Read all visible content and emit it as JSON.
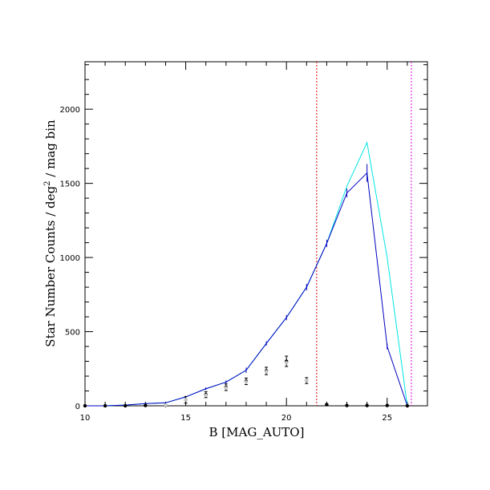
{
  "chart_data": {
    "type": "line",
    "xlabel": "B [MAG_AUTO]",
    "ylabel_parts": [
      "Star Number Counts / deg",
      "2",
      " / mag bin"
    ],
    "xlim": [
      10,
      27
    ],
    "ylim": [
      0,
      2320
    ],
    "xticks": [
      10,
      15,
      20,
      25
    ],
    "yticks": [
      0,
      500,
      1000,
      1500,
      2000
    ],
    "x_minor_step": 1,
    "y_minor_step": 100,
    "grid": false,
    "series": [
      {
        "style": "line",
        "color": "#00e5e5",
        "x": [
          10,
          11,
          12,
          13,
          14,
          15,
          16,
          17,
          18,
          19,
          20,
          21,
          22,
          23,
          24,
          25,
          26
        ],
        "y": [
          0,
          0,
          5,
          15,
          20,
          60,
          115,
          160,
          240,
          420,
          595,
          800,
          1095,
          1480,
          1775,
          1000,
          0
        ]
      },
      {
        "style": "line",
        "color": "#0000c0",
        "x": [
          10,
          11,
          12,
          13,
          14,
          15,
          16,
          17,
          18,
          19,
          20,
          21,
          22,
          23,
          24,
          25,
          26
        ],
        "y": [
          0,
          0,
          5,
          15,
          20,
          60,
          115,
          160,
          240,
          420,
          595,
          800,
          1095,
          1435,
          1570,
          400,
          0
        ],
        "err": [
          0,
          0,
          2,
          3,
          4,
          7,
          9,
          11,
          18,
          15,
          18,
          22,
          25,
          30,
          60,
          20,
          0
        ]
      },
      {
        "style": "points",
        "color": "#000000",
        "x": [
          10,
          11,
          12,
          13,
          14,
          15,
          16,
          17,
          18,
          19,
          20,
          21,
          22,
          23,
          24,
          25,
          26
        ],
        "y": [
          0,
          0,
          0,
          2,
          3,
          40,
          75,
          125,
          165,
          235,
          300,
          170,
          8,
          2,
          2,
          2,
          0
        ],
        "err": [
          0,
          0,
          0,
          2,
          3,
          22,
          20,
          22,
          22,
          25,
          35,
          20,
          4,
          0,
          0,
          0,
          0
        ]
      },
      {
        "style": "points",
        "color": "#c8c8c8",
        "x": [
          14,
          15,
          16,
          17,
          18,
          19,
          20,
          21
        ],
        "y": [
          5,
          40,
          70,
          120,
          160,
          230,
          290,
          170
        ]
      }
    ],
    "vlines": [
      {
        "x": 21.5,
        "color": "#e00000"
      },
      {
        "x": 26.2,
        "color": "#e000e0"
      }
    ]
  }
}
